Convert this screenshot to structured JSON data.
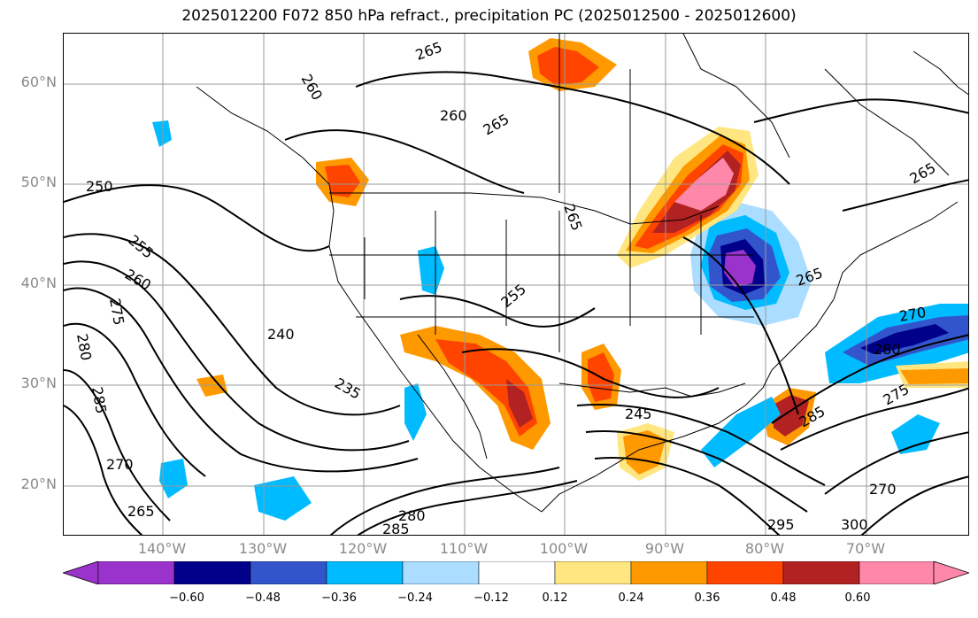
{
  "title": "2025012200 F072 850 hPa refract., precipitation PC (2025012500 - 2025012600)",
  "lat_labels": [
    "60°N",
    "50°N",
    "40°N",
    "30°N",
    "20°N"
  ],
  "lon_labels": [
    "140°W",
    "130°W",
    "120°W",
    "110°W",
    "100°W",
    "90°W",
    "80°W",
    "70°W"
  ],
  "colorbar": {
    "ticks": [
      "−0.60",
      "−0.48",
      "−0.36",
      "−0.24",
      "−0.12",
      "0.12",
      "0.24",
      "0.36",
      "0.48",
      "0.60"
    ],
    "colors": [
      "#9933cc",
      "#00008b",
      "#3355cc",
      "#00bbff",
      "#aaddff",
      "#ffffff",
      "#ffe680",
      "#ff9900",
      "#ff4400",
      "#b22222",
      "#ff88aa"
    ]
  },
  "contour_labels": [
    {
      "text": "265",
      "rot": -20
    },
    {
      "text": "260",
      "rot": 60
    },
    {
      "text": "260",
      "rot": 0
    },
    {
      "text": "265",
      "rot": -30
    },
    {
      "text": "250",
      "rot": 0
    },
    {
      "text": "255",
      "rot": 40
    },
    {
      "text": "260",
      "rot": 30
    },
    {
      "text": "240",
      "rot": 0
    },
    {
      "text": "235",
      "rot": 30
    },
    {
      "text": "255",
      "rot": -40
    },
    {
      "text": "265",
      "rot": 70
    },
    {
      "text": "245",
      "rot": 0
    },
    {
      "text": "270",
      "rot": -10
    },
    {
      "text": "280",
      "rot": 0
    },
    {
      "text": "275",
      "rot": 80
    },
    {
      "text": "280",
      "rot": 80
    },
    {
      "text": "285",
      "rot": 80
    },
    {
      "text": "270",
      "rot": 0
    },
    {
      "text": "265",
      "rot": 0
    },
    {
      "text": "280",
      "rot": 0
    },
    {
      "text": "285",
      "rot": 0
    },
    {
      "text": "295",
      "rot": 0
    },
    {
      "text": "300",
      "rot": 0
    },
    {
      "text": "265",
      "rot": -30
    },
    {
      "text": "265",
      "rot": -20
    },
    {
      "text": "285",
      "rot": -30
    },
    {
      "text": "275",
      "rot": -30
    },
    {
      "text": "270",
      "rot": 0
    }
  ]
}
